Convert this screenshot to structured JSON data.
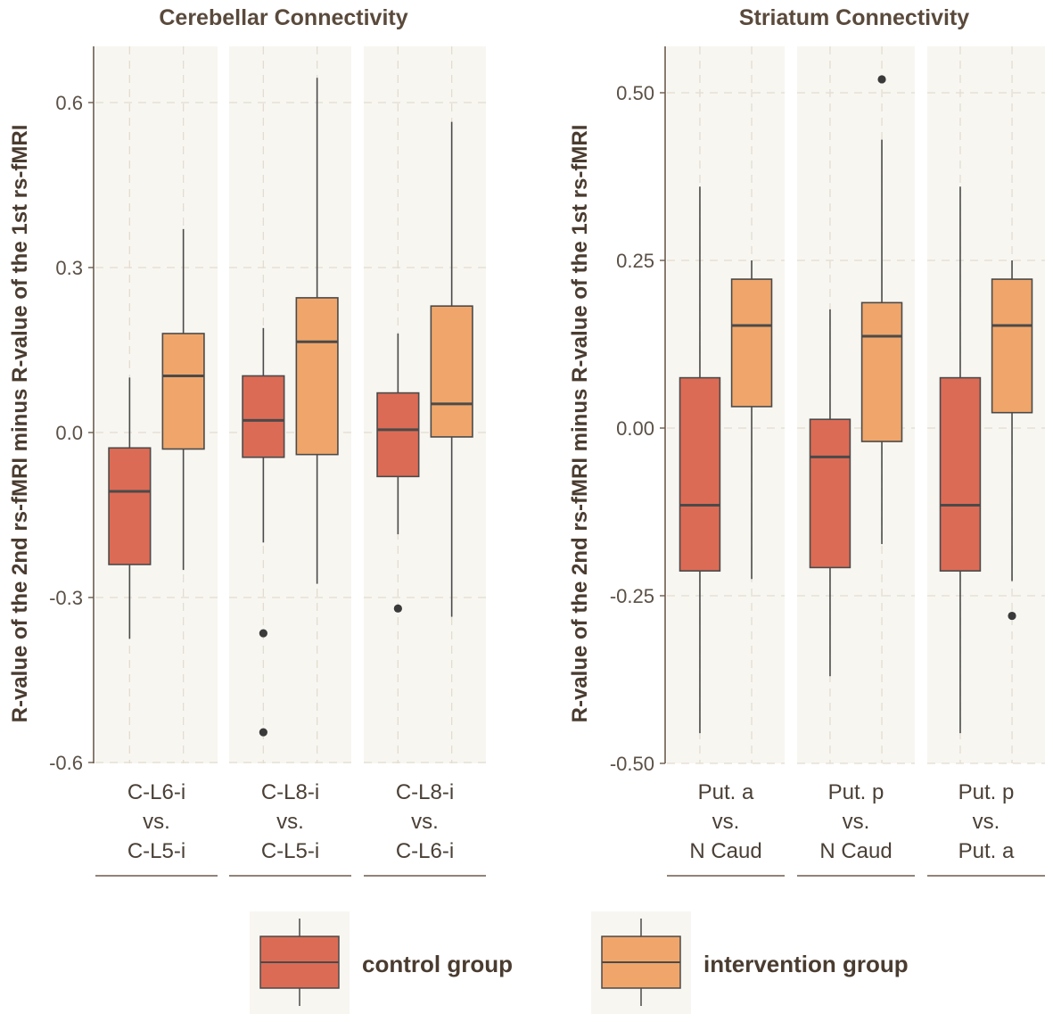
{
  "chart_data": [
    {
      "type": "boxplot",
      "title": "Cerebellar Connectivity",
      "ylabel": "R-value of the 2nd rs-fMRI minus R-value of the 1st rs-fMRI",
      "ylim": [
        -0.6,
        0.7
      ],
      "yticks": [
        -0.6,
        -0.3,
        0.0,
        0.3,
        0.6
      ],
      "ytick_labels": [
        "-0.6",
        "-0.3",
        "0.0",
        "0.3",
        "0.6"
      ],
      "facets": [
        {
          "label": [
            "C-L6-i",
            "vs.",
            "C-L5-i"
          ],
          "boxes": [
            {
              "group": "control",
              "min": -0.375,
              "q1": -0.24,
              "median": -0.107,
              "q3": -0.028,
              "max": 0.1,
              "outliers": []
            },
            {
              "group": "intervention",
              "min": -0.25,
              "q1": -0.03,
              "median": 0.103,
              "q3": 0.18,
              "max": 0.37,
              "outliers": []
            }
          ]
        },
        {
          "label": [
            "C-L8-i",
            "vs.",
            "C-L5-i"
          ],
          "boxes": [
            {
              "group": "control",
              "min": -0.2,
              "q1": -0.045,
              "median": 0.022,
              "q3": 0.103,
              "max": 0.19,
              "outliers": [
                -0.365,
                -0.545
              ]
            },
            {
              "group": "intervention",
              "min": -0.275,
              "q1": -0.04,
              "median": 0.165,
              "q3": 0.245,
              "max": 0.645,
              "outliers": []
            }
          ]
        },
        {
          "label": [
            "C-L8-i",
            "vs.",
            "C-L6-i"
          ],
          "boxes": [
            {
              "group": "control",
              "min": -0.185,
              "q1": -0.08,
              "median": 0.005,
              "q3": 0.072,
              "max": 0.18,
              "outliers": [
                -0.32
              ]
            },
            {
              "group": "intervention",
              "min": -0.335,
              "q1": -0.008,
              "median": 0.052,
              "q3": 0.23,
              "max": 0.565,
              "outliers": []
            }
          ]
        }
      ]
    },
    {
      "type": "boxplot",
      "title": "Striatum Connectivity",
      "ylabel": "R-value of the 2nd rs-fMRI minus R-value of the 1st rs-fMRI",
      "ylim": [
        -0.5,
        0.57
      ],
      "yticks": [
        -0.5,
        -0.25,
        0.0,
        0.25,
        0.5
      ],
      "ytick_labels": [
        "-0.50",
        "-0.25",
        "0.00",
        "0.25",
        "0.50"
      ],
      "facets": [
        {
          "label": [
            "Put. a",
            "vs.",
            "N Caud"
          ],
          "boxes": [
            {
              "group": "control",
              "min": -0.455,
              "q1": -0.213,
              "median": -0.115,
              "q3": 0.075,
              "max": 0.36,
              "outliers": []
            },
            {
              "group": "intervention",
              "min": -0.225,
              "q1": 0.032,
              "median": 0.153,
              "q3": 0.222,
              "max": 0.25,
              "outliers": []
            }
          ]
        },
        {
          "label": [
            "Put. p",
            "vs.",
            "N Caud"
          ],
          "boxes": [
            {
              "group": "control",
              "min": -0.37,
              "q1": -0.208,
              "median": -0.043,
              "q3": 0.013,
              "max": 0.177,
              "outliers": []
            },
            {
              "group": "intervention",
              "min": -0.173,
              "q1": -0.02,
              "median": 0.137,
              "q3": 0.187,
              "max": 0.43,
              "outliers": [
                0.52
              ]
            }
          ]
        },
        {
          "label": [
            "Put. p",
            "vs.",
            "Put. a"
          ],
          "boxes": [
            {
              "group": "control",
              "min": -0.455,
              "q1": -0.213,
              "median": -0.115,
              "q3": 0.075,
              "max": 0.36,
              "outliers": []
            },
            {
              "group": "intervention",
              "min": -0.228,
              "q1": 0.023,
              "median": 0.153,
              "q3": 0.222,
              "max": 0.25,
              "outliers": [
                -0.28
              ]
            }
          ]
        }
      ]
    }
  ],
  "legend": {
    "items": [
      {
        "key": "control",
        "label": "control group"
      },
      {
        "key": "intervention",
        "label": "intervention group"
      }
    ]
  },
  "colors": {
    "control": "#dc6b55",
    "intervention": "#f0a66a",
    "panel_bg": "#f8f6f1",
    "grid": "#e3ddd0",
    "box_line": "#4a4a4a",
    "axis": "#6b5a4a"
  }
}
